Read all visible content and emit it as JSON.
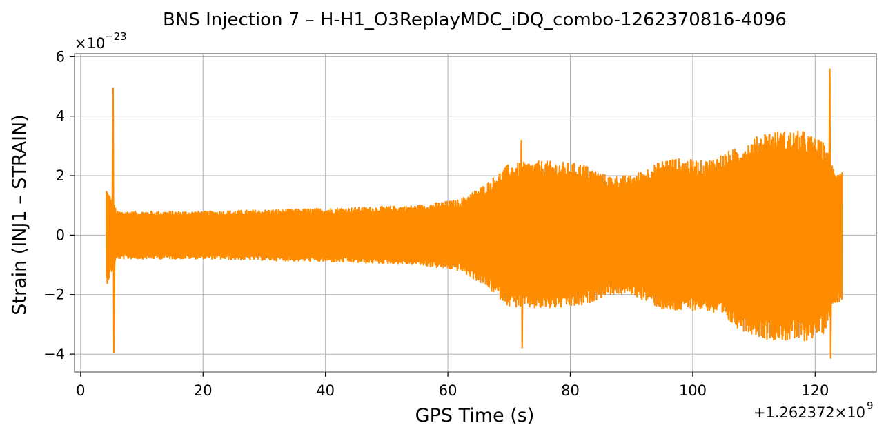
{
  "chart_data": {
    "type": "line",
    "title": "BNS Injection 7 – H-H1_O3ReplayMDC_iDQ_combo-1262370816-4096",
    "xlabel": "GPS Time (s)",
    "ylabel": "Strain (INJ1 – STRAIN)",
    "x_offset_label": "+1.262372×10",
    "x_offset_exponent": "9",
    "y_multiplier_label": "×10",
    "y_multiplier_exponent": "−23",
    "xlim": [
      -1,
      130
    ],
    "ylim": [
      -4.6,
      6.1
    ],
    "grid": true,
    "x_ticks": [
      0,
      20,
      40,
      60,
      80,
      100,
      120
    ],
    "x_tick_labels": [
      "0",
      "20",
      "40",
      "60",
      "80",
      "100",
      "120"
    ],
    "y_ticks": [
      -4,
      -2,
      0,
      2,
      4,
      6
    ],
    "y_tick_labels": [
      "−4",
      "−2",
      "0",
      "2",
      "4",
      "6"
    ],
    "series": [
      {
        "color": "#ff8c00",
        "data_range": [
          4.2,
          124.4
        ],
        "envelope": [
          {
            "x": 4.2,
            "upper": 1.6,
            "lower": -1.7
          },
          {
            "x": 6.0,
            "upper": 0.8,
            "lower": -0.8
          },
          {
            "x": 20,
            "upper": 0.8,
            "lower": -0.8
          },
          {
            "x": 40,
            "upper": 0.9,
            "lower": -0.9
          },
          {
            "x": 55,
            "upper": 1.0,
            "lower": -1.0
          },
          {
            "x": 62,
            "upper": 1.2,
            "lower": -1.2
          },
          {
            "x": 66,
            "upper": 1.7,
            "lower": -1.7
          },
          {
            "x": 70,
            "upper": 2.4,
            "lower": -2.4
          },
          {
            "x": 75,
            "upper": 2.5,
            "lower": -2.5
          },
          {
            "x": 82,
            "upper": 2.4,
            "lower": -2.4
          },
          {
            "x": 86,
            "upper": 2.0,
            "lower": -2.0
          },
          {
            "x": 90,
            "upper": 2.0,
            "lower": -2.0
          },
          {
            "x": 96,
            "upper": 2.6,
            "lower": -2.6
          },
          {
            "x": 102,
            "upper": 2.5,
            "lower": -2.5
          },
          {
            "x": 108,
            "upper": 3.0,
            "lower": -3.2
          },
          {
            "x": 112,
            "upper": 3.5,
            "lower": -3.5
          },
          {
            "x": 118,
            "upper": 3.5,
            "lower": -3.6
          },
          {
            "x": 121.5,
            "upper": 3.1,
            "lower": -3.3
          },
          {
            "x": 123,
            "upper": 2.3,
            "lower": -2.3
          },
          {
            "x": 124.4,
            "upper": 2.2,
            "lower": -2.2
          }
        ],
        "glitches": [
          {
            "x": 5.3,
            "upper": 4.95,
            "lower": -3.95
          },
          {
            "x": 72.0,
            "upper": 3.2,
            "lower": -3.8
          },
          {
            "x": 122.4,
            "upper": 5.6,
            "lower": -4.15
          }
        ]
      }
    ]
  }
}
